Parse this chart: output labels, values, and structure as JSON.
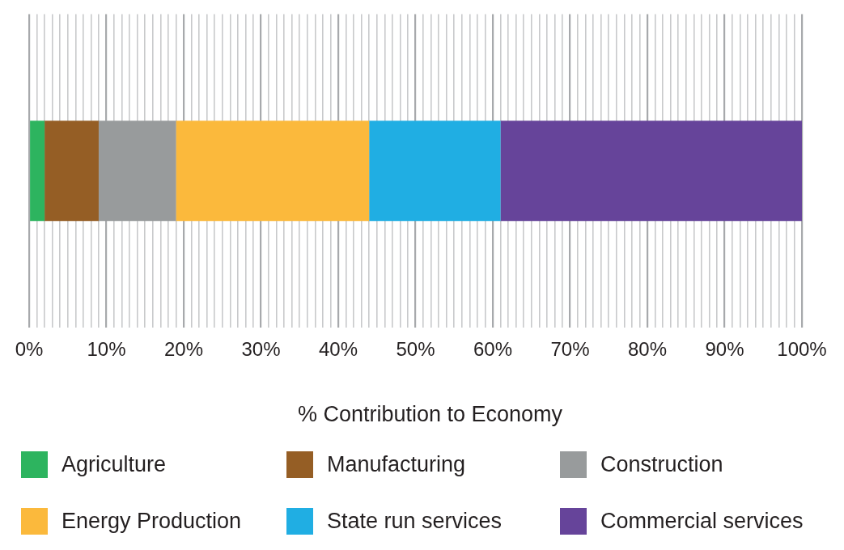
{
  "chart_data": {
    "type": "bar",
    "orientation": "horizontal",
    "stacked": true,
    "categories": [
      null
    ],
    "series": [
      {
        "name": "Agriculture",
        "color": "#2db45f",
        "values": [
          2
        ]
      },
      {
        "name": "Manufacturing",
        "color": "#955e25",
        "values": [
          7
        ]
      },
      {
        "name": "Construction",
        "color": "#989b9c",
        "values": [
          10
        ]
      },
      {
        "name": "Energy Production",
        "color": "#fbb93c",
        "values": [
          25
        ]
      },
      {
        "name": "State run services",
        "color": "#20aee3",
        "values": [
          17
        ]
      },
      {
        "name": "Commercial services",
        "color": "#66449a",
        "values": [
          39
        ]
      }
    ],
    "xlabel": "% Contribution to Economy",
    "xlim": [
      0,
      100
    ],
    "xticks": [
      {
        "value": 0,
        "label": "0%"
      },
      {
        "value": 1,
        "label": null
      },
      {
        "value": 2,
        "label": null
      },
      {
        "value": 3,
        "label": null
      },
      {
        "value": 4,
        "label": null
      },
      {
        "value": 5,
        "label": null
      },
      {
        "value": 6,
        "label": null
      },
      {
        "value": 7,
        "label": null
      },
      {
        "value": 8,
        "label": null
      },
      {
        "value": 9,
        "label": null
      },
      {
        "value": 10,
        "label": "10%"
      },
      {
        "value": 11,
        "label": null
      },
      {
        "value": 12,
        "label": null
      },
      {
        "value": 13,
        "label": null
      },
      {
        "value": 14,
        "label": null
      },
      {
        "value": 15,
        "label": null
      },
      {
        "value": 16,
        "label": null
      },
      {
        "value": 17,
        "label": null
      },
      {
        "value": 18,
        "label": null
      },
      {
        "value": 19,
        "label": null
      },
      {
        "value": 20,
        "label": "20%"
      },
      {
        "value": 21,
        "label": null
      },
      {
        "value": 22,
        "label": null
      },
      {
        "value": 23,
        "label": null
      },
      {
        "value": 24,
        "label": null
      },
      {
        "value": 25,
        "label": null
      },
      {
        "value": 26,
        "label": null
      },
      {
        "value": 27,
        "label": null
      },
      {
        "value": 28,
        "label": null
      },
      {
        "value": 29,
        "label": null
      },
      {
        "value": 30,
        "label": "30%"
      },
      {
        "value": 31,
        "label": null
      },
      {
        "value": 32,
        "label": null
      },
      {
        "value": 33,
        "label": null
      },
      {
        "value": 34,
        "label": null
      },
      {
        "value": 35,
        "label": null
      },
      {
        "value": 36,
        "label": null
      },
      {
        "value": 37,
        "label": null
      },
      {
        "value": 38,
        "label": null
      },
      {
        "value": 39,
        "label": null
      },
      {
        "value": 40,
        "label": "40%"
      },
      {
        "value": 41,
        "label": null
      },
      {
        "value": 42,
        "label": null
      },
      {
        "value": 43,
        "label": null
      },
      {
        "value": 44,
        "label": null
      },
      {
        "value": 45,
        "label": null
      },
      {
        "value": 46,
        "label": null
      },
      {
        "value": 47,
        "label": null
      },
      {
        "value": 48,
        "label": null
      },
      {
        "value": 49,
        "label": null
      },
      {
        "value": 50,
        "label": "50%"
      },
      {
        "value": 51,
        "label": null
      },
      {
        "value": 52,
        "label": null
      },
      {
        "value": 53,
        "label": null
      },
      {
        "value": 54,
        "label": null
      },
      {
        "value": 55,
        "label": null
      },
      {
        "value": 56,
        "label": null
      },
      {
        "value": 57,
        "label": null
      },
      {
        "value": 58,
        "label": null
      },
      {
        "value": 59,
        "label": null
      },
      {
        "value": 60,
        "label": "60%"
      },
      {
        "value": 61,
        "label": null
      },
      {
        "value": 62,
        "label": null
      },
      {
        "value": 63,
        "label": null
      },
      {
        "value": 64,
        "label": null
      },
      {
        "value": 65,
        "label": null
      },
      {
        "value": 66,
        "label": null
      },
      {
        "value": 67,
        "label": null
      },
      {
        "value": 68,
        "label": null
      },
      {
        "value": 69,
        "label": null
      },
      {
        "value": 70,
        "label": "70%"
      },
      {
        "value": 71,
        "label": null
      },
      {
        "value": 72,
        "label": null
      },
      {
        "value": 73,
        "label": null
      },
      {
        "value": 74,
        "label": null
      },
      {
        "value": 75,
        "label": null
      },
      {
        "value": 76,
        "label": null
      },
      {
        "value": 77,
        "label": null
      },
      {
        "value": 78,
        "label": null
      },
      {
        "value": 79,
        "label": null
      },
      {
        "value": 80,
        "label": "80%"
      },
      {
        "value": 81,
        "label": null
      },
      {
        "value": 82,
        "label": null
      },
      {
        "value": 83,
        "label": null
      },
      {
        "value": 84,
        "label": null
      },
      {
        "value": 85,
        "label": null
      },
      {
        "value": 86,
        "label": null
      },
      {
        "value": 87,
        "label": null
      },
      {
        "value": 88,
        "label": null
      },
      {
        "value": 89,
        "label": null
      },
      {
        "value": 90,
        "label": "90%"
      },
      {
        "value": 91,
        "label": null
      },
      {
        "value": 92,
        "label": null
      },
      {
        "value": 93,
        "label": null
      },
      {
        "value": 94,
        "label": null
      },
      {
        "value": 95,
        "label": null
      },
      {
        "value": 96,
        "label": null
      },
      {
        "value": 97,
        "label": null
      },
      {
        "value": 98,
        "label": null
      },
      {
        "value": 99,
        "label": null
      },
      {
        "value": 100,
        "label": "100%"
      }
    ],
    "grid": "x",
    "legend": "bottom"
  }
}
